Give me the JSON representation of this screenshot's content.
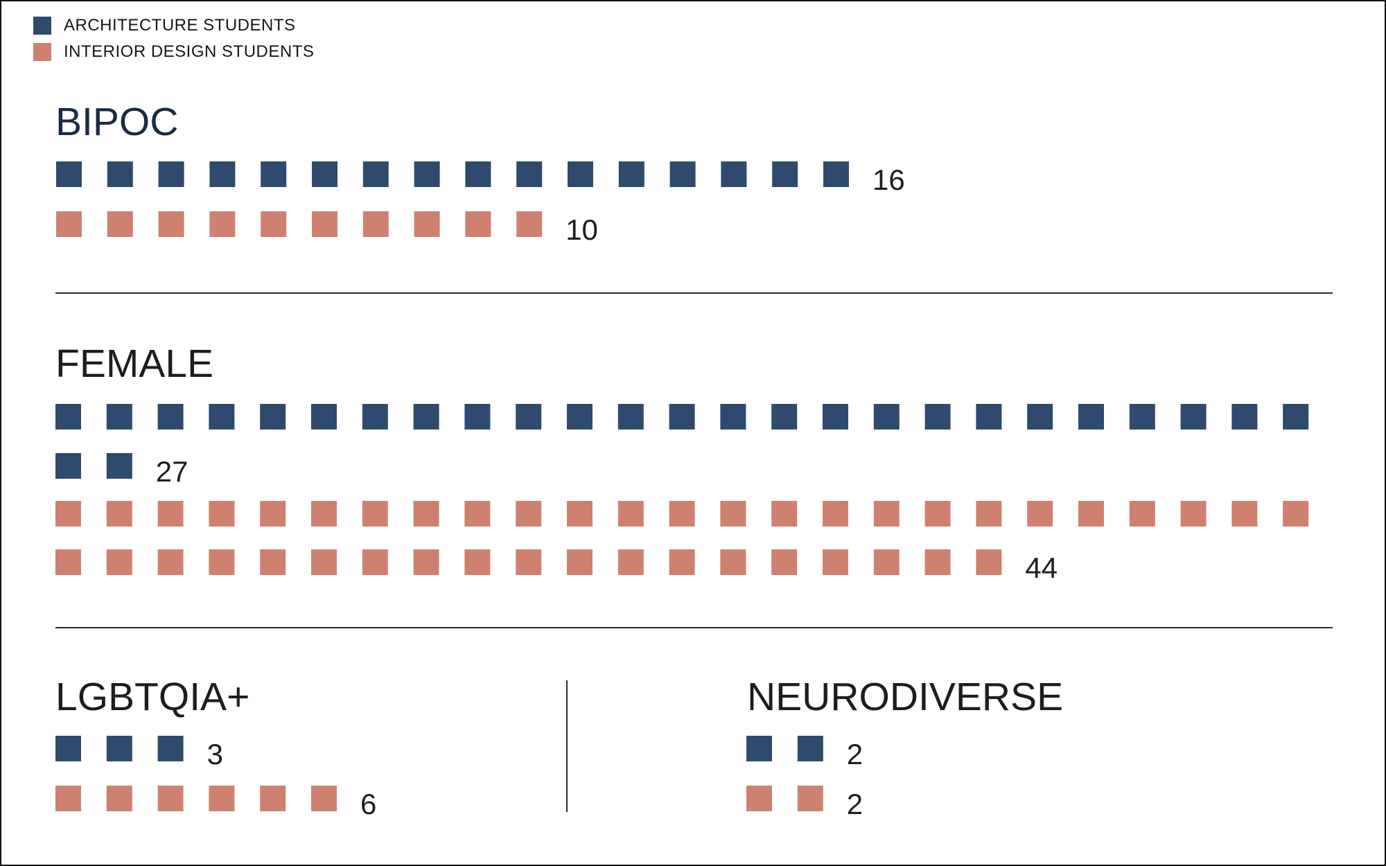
{
  "colors": {
    "architecture": "#2e4a6e",
    "interior_design": "#cf8170"
  },
  "legend": [
    {
      "key": "architecture",
      "label": "ARCHITECTURE STUDENTS"
    },
    {
      "key": "interior_design",
      "label": "INTERIOR DESIGN STUDENTS"
    }
  ],
  "chart_data": {
    "type": "pictogram",
    "unit": "1 square = 1 student",
    "series_names": [
      "ARCHITECTURE STUDENTS",
      "INTERIOR DESIGN STUDENTS"
    ],
    "panels": [
      {
        "id": "bipoc",
        "title": "BIPOC",
        "values": [
          16,
          10
        ]
      },
      {
        "id": "female",
        "title": "FEMALE",
        "values": [
          27,
          44
        ]
      },
      {
        "id": "lgbtqia",
        "title": "LGBTQIA+",
        "values": [
          3,
          6
        ]
      },
      {
        "id": "neurodiverse",
        "title": "NEURODIVERSE",
        "values": [
          2,
          2
        ]
      }
    ]
  }
}
